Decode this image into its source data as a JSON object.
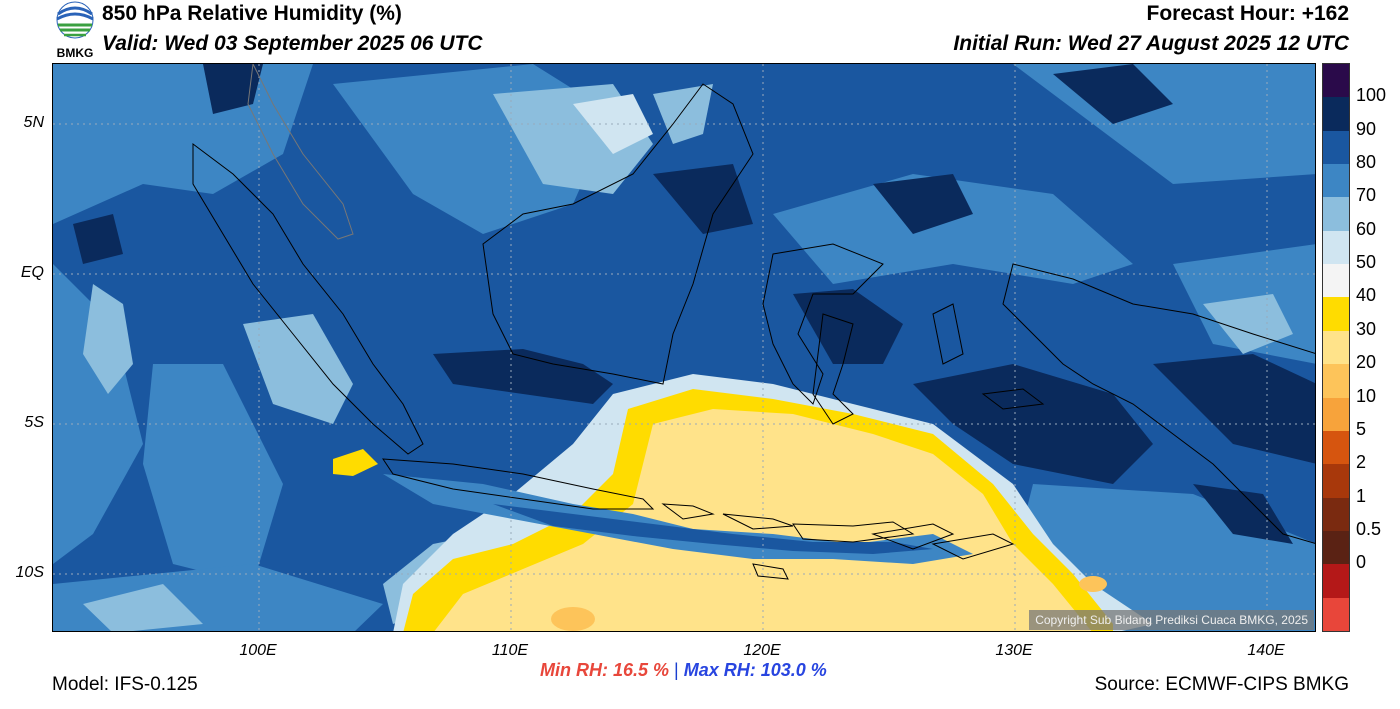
{
  "header": {
    "title": "850 hPa Relative Humidity (%)",
    "valid": "Valid: Wed 03 September 2025 06 UTC",
    "forecast_hour": "Forecast Hour: +162",
    "initial_run": "Initial Run: Wed 27 August 2025 12 UTC",
    "logo_text": "BMKG"
  },
  "axes": {
    "lat_labels": [
      "5N",
      "EQ",
      "5S",
      "10S"
    ],
    "lon_labels": [
      "100E",
      "110E",
      "120E",
      "130E",
      "140E"
    ]
  },
  "colorbar": {
    "labels": [
      "100",
      "90",
      "80",
      "70",
      "60",
      "50",
      "40",
      "30",
      "20",
      "10",
      "5",
      "2",
      "1",
      "0.5",
      "0"
    ],
    "colors": [
      "#2a0a4a",
      "#0a2a5c",
      "#1a57a0",
      "#3d86c4",
      "#8cbedd",
      "#d0e5f1",
      "#f4f4f4",
      "#ffdc00",
      "#ffe38a",
      "#fdc45a",
      "#f7a33b",
      "#d6550f",
      "#a8380b",
      "#7a2a10",
      "#5a2214",
      "#b41818",
      "#e8463a"
    ]
  },
  "stats": {
    "min_rh": "Min RH:  16.5 %",
    "separator": "|",
    "max_rh": "Max RH: 103.0 %"
  },
  "footer": {
    "model": "Model: IFS-0.125",
    "source": "Source: ECMWF-CIPS BMKG",
    "copyright": "Copyright Sub Bidang Prediksi Cuaca BMKG, 2025"
  },
  "map": {
    "colors": {
      "base": "#1a57a0",
      "mid": "#3d86c4",
      "light": "#8cbedd",
      "pale": "#d0e5f1",
      "dark": "#0a2a5c",
      "yellow": "#ffdc00",
      "tan": "#ffe38a",
      "orange": "#fdc45a",
      "coast": "#000000"
    }
  }
}
